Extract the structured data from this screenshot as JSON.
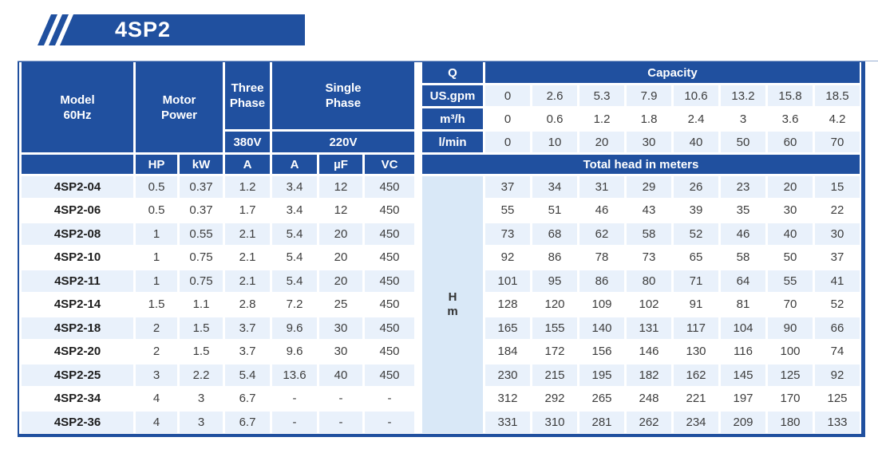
{
  "banner": {
    "title": "4SP2",
    "color": "#20509f"
  },
  "table": {
    "header": {
      "model": [
        "Model",
        "60Hz"
      ],
      "motor_power": [
        "Motor",
        "Power"
      ],
      "three_phase": [
        "Three",
        "Phase"
      ],
      "three_phase_voltage": "380V",
      "single_phase": [
        "Single",
        "Phase"
      ],
      "single_phase_voltage": "220V",
      "q_label": "Q",
      "capacity_label": "Capacity",
      "flow_rows": [
        {
          "unit": "US.gpm",
          "values": [
            "0",
            "2.6",
            "5.3",
            "7.9",
            "10.6",
            "13.2",
            "15.8",
            "18.5"
          ]
        },
        {
          "unit": "m³/h",
          "values": [
            "0",
            "0.6",
            "1.2",
            "1.8",
            "2.4",
            "3",
            "3.6",
            "4.2"
          ]
        },
        {
          "unit": "l/min",
          "values": [
            "0",
            "10",
            "20",
            "30",
            "40",
            "50",
            "60",
            "70"
          ]
        }
      ],
      "sub_columns": [
        "HP",
        "kW",
        "A",
        "A",
        "µF",
        "VC"
      ],
      "total_head_label": "Total head in meters",
      "head_unit_lines": [
        "H",
        "m"
      ]
    },
    "rows": [
      {
        "model": "4SP2-04",
        "hp": "0.5",
        "kw": "0.37",
        "a380": "1.2",
        "a220": "3.4",
        "uf": "12",
        "vc": "450",
        "head": [
          "37",
          "34",
          "31",
          "29",
          "26",
          "23",
          "20",
          "15"
        ]
      },
      {
        "model": "4SP2-06",
        "hp": "0.5",
        "kw": "0.37",
        "a380": "1.7",
        "a220": "3.4",
        "uf": "12",
        "vc": "450",
        "head": [
          "55",
          "51",
          "46",
          "43",
          "39",
          "35",
          "30",
          "22"
        ]
      },
      {
        "model": "4SP2-08",
        "hp": "1",
        "kw": "0.55",
        "a380": "2.1",
        "a220": "5.4",
        "uf": "20",
        "vc": "450",
        "head": [
          "73",
          "68",
          "62",
          "58",
          "52",
          "46",
          "40",
          "30"
        ]
      },
      {
        "model": "4SP2-10",
        "hp": "1",
        "kw": "0.75",
        "a380": "2.1",
        "a220": "5.4",
        "uf": "20",
        "vc": "450",
        "head": [
          "92",
          "86",
          "78",
          "73",
          "65",
          "58",
          "50",
          "37"
        ]
      },
      {
        "model": "4SP2-11",
        "hp": "1",
        "kw": "0.75",
        "a380": "2.1",
        "a220": "5.4",
        "uf": "20",
        "vc": "450",
        "head": [
          "101",
          "95",
          "86",
          "80",
          "71",
          "64",
          "55",
          "41"
        ]
      },
      {
        "model": "4SP2-14",
        "hp": "1.5",
        "kw": "1.1",
        "a380": "2.8",
        "a220": "7.2",
        "uf": "25",
        "vc": "450",
        "head": [
          "128",
          "120",
          "109",
          "102",
          "91",
          "81",
          "70",
          "52"
        ]
      },
      {
        "model": "4SP2-18",
        "hp": "2",
        "kw": "1.5",
        "a380": "3.7",
        "a220": "9.6",
        "uf": "30",
        "vc": "450",
        "head": [
          "165",
          "155",
          "140",
          "131",
          "117",
          "104",
          "90",
          "66"
        ]
      },
      {
        "model": "4SP2-20",
        "hp": "2",
        "kw": "1.5",
        "a380": "3.7",
        "a220": "9.6",
        "uf": "30",
        "vc": "450",
        "head": [
          "184",
          "172",
          "156",
          "146",
          "130",
          "116",
          "100",
          "74"
        ]
      },
      {
        "model": "4SP2-25",
        "hp": "3",
        "kw": "2.2",
        "a380": "5.4",
        "a220": "13.6",
        "uf": "40",
        "vc": "450",
        "head": [
          "230",
          "215",
          "195",
          "182",
          "162",
          "145",
          "125",
          "92"
        ]
      },
      {
        "model": "4SP2-34",
        "hp": "4",
        "kw": "3",
        "a380": "6.7",
        "a220": "-",
        "uf": "-",
        "vc": "-",
        "head": [
          "312",
          "292",
          "265",
          "248",
          "221",
          "197",
          "170",
          "125"
        ]
      },
      {
        "model": "4SP2-36",
        "hp": "4",
        "kw": "3",
        "a380": "6.7",
        "a220": "-",
        "uf": "-",
        "vc": "-",
        "head": [
          "331",
          "310",
          "281",
          "262",
          "234",
          "209",
          "180",
          "133"
        ]
      }
    ]
  },
  "colors": {
    "primary_blue": "#20509f",
    "row_stripe": "#e9f1fb",
    "h_column_fill": "#d9e8f7",
    "gap_white": "#ffffff",
    "text_dark": "#3d3d3d"
  }
}
